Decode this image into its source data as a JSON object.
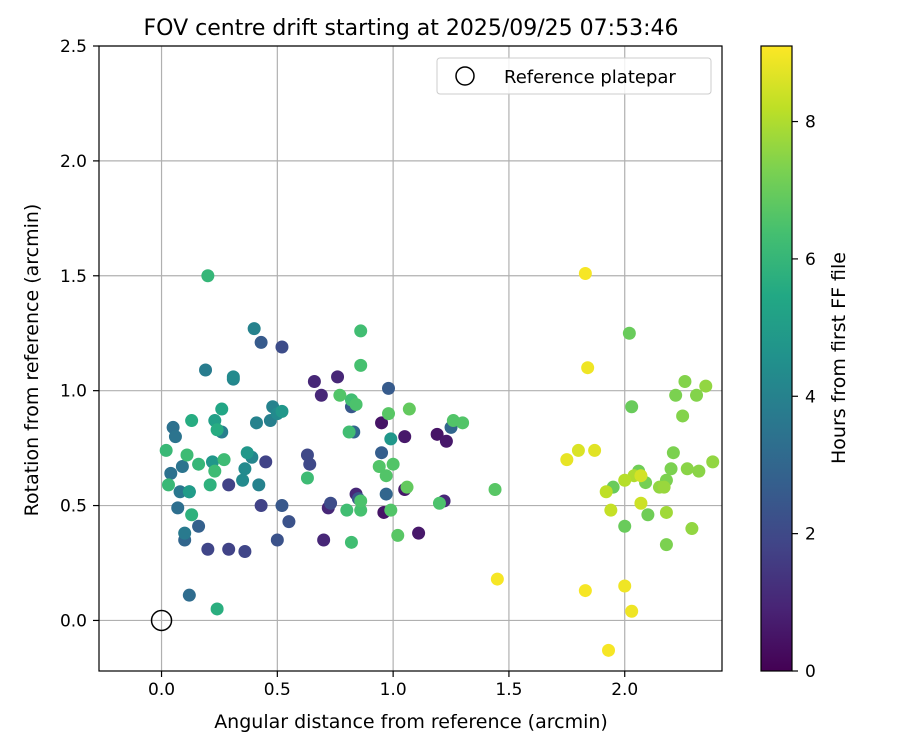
{
  "chart_data": {
    "type": "scatter",
    "title": "FOV centre drift starting at 2025/09/25 07:53:46",
    "xlabel": "Angular distance from reference (arcmin)",
    "ylabel": "Rotation from reference (arcmin)",
    "xlim": [
      -0.27,
      2.42
    ],
    "ylim": [
      -0.22,
      2.5
    ],
    "xticks": [
      0.0,
      0.5,
      1.0,
      1.5,
      2.0
    ],
    "yticks": [
      0.0,
      0.5,
      1.0,
      1.5,
      2.0,
      2.5
    ],
    "grid": true,
    "legend": {
      "placement": "top-right",
      "entries": [
        "Reference platepar"
      ]
    },
    "reference_point": {
      "x": 0.0,
      "y": 0.0,
      "label": "Reference platepar"
    },
    "colorbar": {
      "label": "Hours from first FF file",
      "min": 0,
      "max": 9.1,
      "ticks": [
        0,
        2,
        4,
        6,
        8
      ],
      "colormap": "viridis"
    },
    "points": [
      [
        0.7,
        0.35,
        1.0
      ],
      [
        0.69,
        0.98,
        1.0
      ],
      [
        0.66,
        1.04,
        1.0
      ],
      [
        0.76,
        1.06,
        1.0
      ],
      [
        0.72,
        0.49,
        1.0
      ],
      [
        0.84,
        0.55,
        1.0
      ],
      [
        0.95,
        0.86,
        0.5
      ],
      [
        0.96,
        0.47,
        0.5
      ],
      [
        1.05,
        0.57,
        0.6
      ],
      [
        1.05,
        0.8,
        0.6
      ],
      [
        1.11,
        0.38,
        0.6
      ],
      [
        1.19,
        0.81,
        0.5
      ],
      [
        1.23,
        0.78,
        0.6
      ],
      [
        1.22,
        0.52,
        1.0
      ],
      [
        0.29,
        0.31,
        1.8
      ],
      [
        0.36,
        0.3,
        1.9
      ],
      [
        0.2,
        0.31,
        1.9
      ],
      [
        0.29,
        0.59,
        1.8
      ],
      [
        0.45,
        0.69,
        1.8
      ],
      [
        0.43,
        0.5,
        1.8
      ],
      [
        0.52,
        1.19,
        2.1
      ],
      [
        0.43,
        1.21,
        2.6
      ],
      [
        0.55,
        0.43,
        2.3
      ],
      [
        0.52,
        0.5,
        2.5
      ],
      [
        0.5,
        0.35,
        2.3
      ],
      [
        0.63,
        0.72,
        2.0
      ],
      [
        0.64,
        0.68,
        2.0
      ],
      [
        0.73,
        0.51,
        2.1
      ],
      [
        0.82,
        0.93,
        2.5
      ],
      [
        0.83,
        0.82,
        3.0
      ],
      [
        0.98,
        1.01,
        2.6
      ],
      [
        0.95,
        0.73,
        2.7
      ],
      [
        1.25,
        0.84,
        3.0
      ],
      [
        0.97,
        0.55,
        3.0
      ],
      [
        0.85,
        0.53,
        2.4
      ],
      [
        0.16,
        0.41,
        2.8
      ],
      [
        0.1,
        0.35,
        3.0
      ],
      [
        0.12,
        0.11,
        3.2
      ],
      [
        0.07,
        0.49,
        3.3
      ],
      [
        0.04,
        0.64,
        3.4
      ],
      [
        0.05,
        0.84,
        3.4
      ],
      [
        0.06,
        0.8,
        3.5
      ],
      [
        0.09,
        0.67,
        3.5
      ],
      [
        0.08,
        0.56,
        3.6
      ],
      [
        0.1,
        0.38,
        3.7
      ],
      [
        0.12,
        0.56,
        3.8
      ],
      [
        0.19,
        1.09,
        3.8
      ],
      [
        0.26,
        0.82,
        3.9
      ],
      [
        0.31,
        1.05,
        4.1
      ],
      [
        0.31,
        1.06,
        4.3
      ],
      [
        0.35,
        0.61,
        4.3
      ],
      [
        0.36,
        0.66,
        4.3
      ],
      [
        0.39,
        0.71,
        4.1
      ],
      [
        0.41,
        0.86,
        4.0
      ],
      [
        0.4,
        1.27,
        4.0
      ],
      [
        0.42,
        0.59,
        4.0
      ],
      [
        0.47,
        0.87,
        3.9
      ],
      [
        0.48,
        0.93,
        4.0
      ],
      [
        0.5,
        0.9,
        4.3
      ],
      [
        0.52,
        0.91,
        4.8
      ],
      [
        0.37,
        0.73,
        4.8
      ],
      [
        0.22,
        0.69,
        4.8
      ],
      [
        0.99,
        0.79,
        4.8
      ],
      [
        0.12,
        0.56,
        5.0
      ],
      [
        0.23,
        0.87,
        5.1
      ],
      [
        0.26,
        0.92,
        5.4
      ],
      [
        0.13,
        0.87,
        5.6
      ],
      [
        0.13,
        0.46,
        5.8
      ],
      [
        0.24,
        0.83,
        5.6
      ],
      [
        0.24,
        0.05,
        5.7
      ],
      [
        0.21,
        0.59,
        5.8
      ],
      [
        0.2,
        1.5,
        6.0
      ],
      [
        0.16,
        0.68,
        6.0
      ],
      [
        0.03,
        0.59,
        6.1
      ],
      [
        0.02,
        0.74,
        6.1
      ],
      [
        0.11,
        0.72,
        6.2
      ],
      [
        0.23,
        0.65,
        6.2
      ],
      [
        0.27,
        0.7,
        6.2
      ],
      [
        0.63,
        0.62,
        6.2
      ],
      [
        0.81,
        0.82,
        6.3
      ],
      [
        0.82,
        0.34,
        6.3
      ],
      [
        0.8,
        0.48,
        6.3
      ],
      [
        0.82,
        0.96,
        6.3
      ],
      [
        0.86,
        1.26,
        6.3
      ],
      [
        0.86,
        1.11,
        6.4
      ],
      [
        0.84,
        0.94,
        6.5
      ],
      [
        0.86,
        0.48,
        6.4
      ],
      [
        0.86,
        0.52,
        6.5
      ],
      [
        0.77,
        0.98,
        6.6
      ],
      [
        0.94,
        0.67,
        6.6
      ],
      [
        0.98,
        0.9,
        6.7
      ],
      [
        0.97,
        0.63,
        6.6
      ],
      [
        0.99,
        0.48,
        6.6
      ],
      [
        1.0,
        0.68,
        6.6
      ],
      [
        1.02,
        0.37,
        6.7
      ],
      [
        1.06,
        0.58,
        6.9
      ],
      [
        1.07,
        0.92,
        6.9
      ],
      [
        1.2,
        0.51,
        6.5
      ],
      [
        1.26,
        0.87,
        6.6
      ],
      [
        1.3,
        0.86,
        6.6
      ],
      [
        1.44,
        0.57,
        6.7
      ],
      [
        2.02,
        1.25,
        7.0
      ],
      [
        2.03,
        0.93,
        7.0
      ],
      [
        2.0,
        0.41,
        7.0
      ],
      [
        1.95,
        0.58,
        7.0
      ],
      [
        2.06,
        0.65,
        7.1
      ],
      [
        2.1,
        0.46,
        7.1
      ],
      [
        2.09,
        0.6,
        7.2
      ],
      [
        2.18,
        0.33,
        7.3
      ],
      [
        2.18,
        0.61,
        7.3
      ],
      [
        2.2,
        0.66,
        7.3
      ],
      [
        2.22,
        0.98,
        7.3
      ],
      [
        2.21,
        0.73,
        7.3
      ],
      [
        2.26,
        1.04,
        7.4
      ],
      [
        2.25,
        0.89,
        7.4
      ],
      [
        2.27,
        0.66,
        7.5
      ],
      [
        2.31,
        0.98,
        7.4
      ],
      [
        2.32,
        0.65,
        7.5
      ],
      [
        2.29,
        0.4,
        7.6
      ],
      [
        2.35,
        1.02,
        7.6
      ],
      [
        2.38,
        0.69,
        7.6
      ],
      [
        2.15,
        0.58,
        7.6
      ],
      [
        2.17,
        0.58,
        7.7
      ],
      [
        2.18,
        0.47,
        7.8
      ],
      [
        2.04,
        0.63,
        8.0
      ],
      [
        2.0,
        0.61,
        8.1
      ],
      [
        1.92,
        0.56,
        8.2
      ],
      [
        1.94,
        0.48,
        8.3
      ],
      [
        2.07,
        0.51,
        8.4
      ],
      [
        2.07,
        0.63,
        8.5
      ],
      [
        1.8,
        0.74,
        8.6
      ],
      [
        1.87,
        0.74,
        8.7
      ],
      [
        1.75,
        0.7,
        8.8
      ],
      [
        1.84,
        1.1,
        8.9
      ],
      [
        1.83,
        1.51,
        9.0
      ],
      [
        1.83,
        0.13,
        9.0
      ],
      [
        2.0,
        0.15,
        8.9
      ],
      [
        2.03,
        0.04,
        8.9
      ],
      [
        1.93,
        -0.13,
        9.0
      ],
      [
        1.45,
        0.18,
        9.0
      ]
    ]
  }
}
